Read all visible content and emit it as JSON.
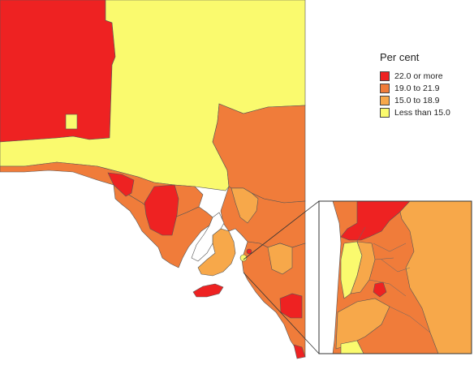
{
  "legend": {
    "title": "Per cent",
    "items": [
      {
        "label": "22.0 or more",
        "color": "#ee2222"
      },
      {
        "label": "19.0 to 21.9",
        "color": "#f07c3a"
      },
      {
        "label": "15.0 to 18.9",
        "color": "#f7a84a"
      },
      {
        "label": "Less than 15.0",
        "color": "#fafa6e"
      }
    ]
  },
  "colors": {
    "border": "#555555",
    "water": "#ffffff",
    "inset_frame": "#333333"
  }
}
